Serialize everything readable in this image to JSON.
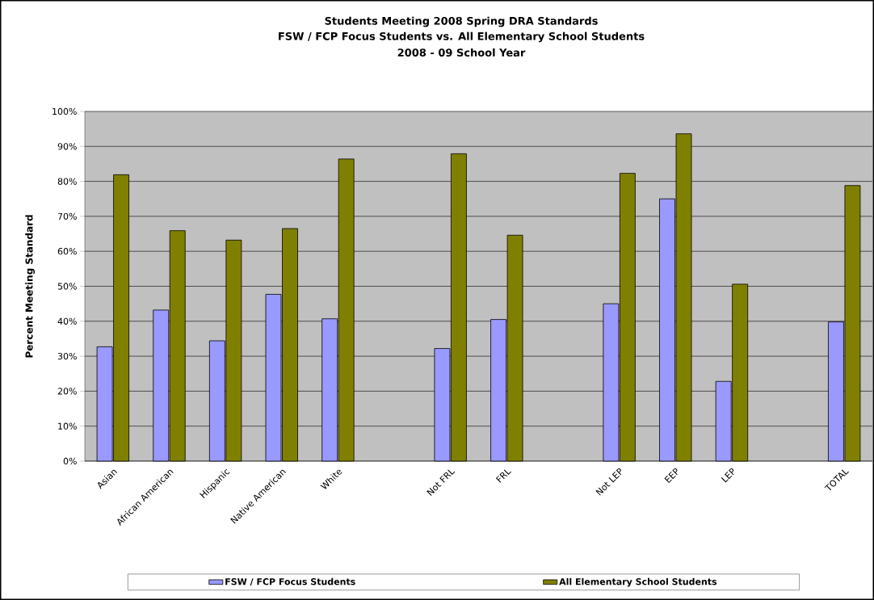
{
  "chart_data": {
    "type": "bar",
    "title": "Students Meeting 2008 Spring DRA Standards",
    "subtitle": "FSW / FCP Focus Students vs. All Elementary School Students",
    "annotations": [
      "2008 - 09 School Year"
    ],
    "ylabel": "Percent Meeting Standard",
    "categories": [
      "Asian",
      "African American",
      "Hispanic",
      "Native American",
      "White",
      null,
      "Not FRL",
      "FRL",
      null,
      "Not LEP",
      "EEP",
      "LEP",
      null,
      "TOTAL"
    ],
    "series": [
      {
        "name": "FSW / FCP Focus Students",
        "color": "#9999ff",
        "values": [
          32.7,
          43.2,
          34.4,
          47.7,
          40.7,
          null,
          32.2,
          40.5,
          null,
          45.0,
          75.0,
          22.8,
          null,
          39.8
        ]
      },
      {
        "name": "All Elementary School Students",
        "color": "#808000",
        "values": [
          81.9,
          65.9,
          63.2,
          66.5,
          86.4,
          null,
          87.9,
          64.6,
          null,
          82.3,
          93.6,
          50.6,
          null,
          78.8
        ]
      }
    ],
    "ylim": [
      0,
      100
    ],
    "yticks": [
      {
        "value": 0,
        "label": "0%"
      },
      {
        "value": 10,
        "label": "10%"
      },
      {
        "value": 20,
        "label": "20%"
      },
      {
        "value": 30,
        "label": "30%"
      },
      {
        "value": 40,
        "label": "40%"
      },
      {
        "value": 50,
        "label": "50%"
      },
      {
        "value": 60,
        "label": "60%"
      },
      {
        "value": 70,
        "label": "70%"
      },
      {
        "value": 80,
        "label": "80%"
      },
      {
        "value": 90,
        "label": "90%"
      },
      {
        "value": 100,
        "label": "100%"
      }
    ],
    "grid": "y",
    "legend": "bottom"
  }
}
